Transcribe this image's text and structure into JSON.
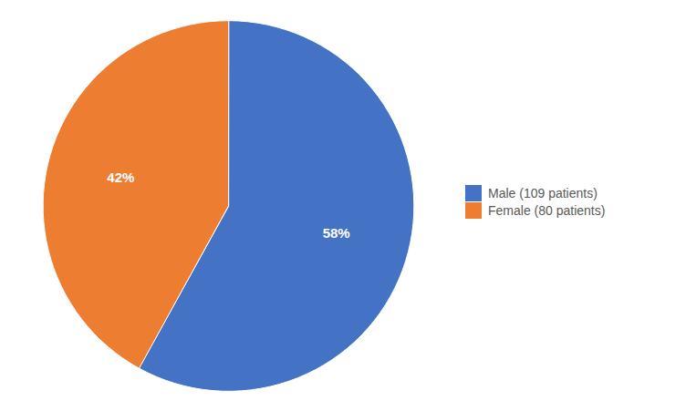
{
  "chart_data": {
    "type": "pie",
    "categories": [
      "Male (109 patients)",
      "Female (80 patients)"
    ],
    "values": [
      58,
      42
    ],
    "value_labels": [
      "58%",
      "42%"
    ],
    "data_labels": true,
    "colors": [
      "#4472C4",
      "#ED7D31"
    ],
    "legend": "right"
  }
}
